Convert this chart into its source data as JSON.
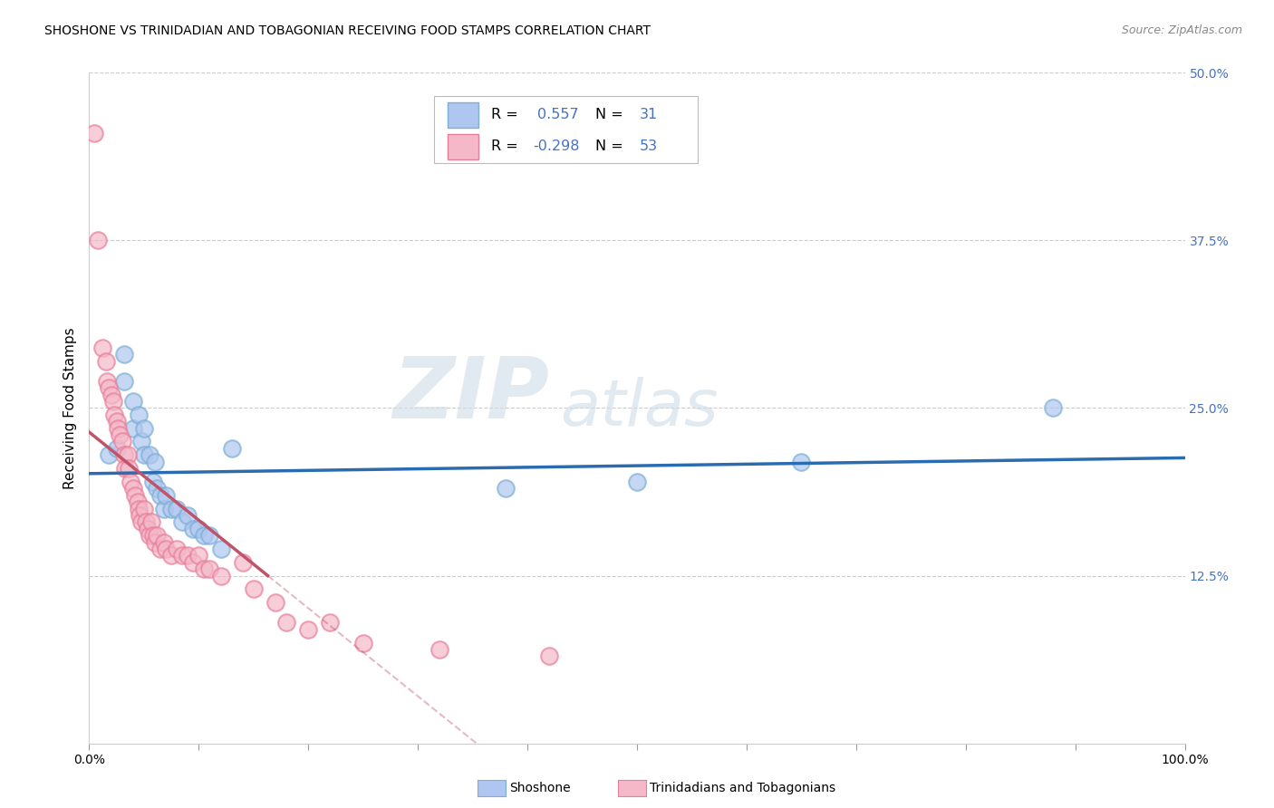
{
  "title": "SHOSHONE VS TRINIDADIAN AND TOBAGONIAN RECEIVING FOOD STAMPS CORRELATION CHART",
  "source": "Source: ZipAtlas.com",
  "ylabel": "Receiving Food Stamps",
  "xlim": [
    0.0,
    1.0
  ],
  "ylim": [
    0.0,
    0.5
  ],
  "yticks_right": [
    0.125,
    0.25,
    0.375,
    0.5
  ],
  "ytick_right_labels": [
    "12.5%",
    "25.0%",
    "37.5%",
    "50.0%"
  ],
  "xtick_positions": [
    0.0,
    0.1,
    0.2,
    0.3,
    0.4,
    0.5,
    0.6,
    0.7,
    0.8,
    0.9,
    1.0
  ],
  "shoshone_color": "#7bafd4",
  "shoshone_face_color": "#aec6f0",
  "trinidadian_color": "#e87e9a",
  "trinidadian_face_color": "#f4b8c8",
  "shoshone_line_color": "#2b6cb0",
  "trinidadian_line_color": "#c0546a",
  "shoshone_R": "0.557",
  "shoshone_N": "31",
  "trinidadian_R": "-0.298",
  "trinidadian_N": "53",
  "watermark_zip": "ZIP",
  "watermark_atlas": "atlas",
  "background_color": "#ffffff",
  "grid_color": "#cccccc",
  "right_tick_color": "#4472c4",
  "legend_R_color": "#4472c4",
  "shoshone_scatter": [
    [
      0.018,
      0.215
    ],
    [
      0.025,
      0.22
    ],
    [
      0.032,
      0.29
    ],
    [
      0.032,
      0.27
    ],
    [
      0.04,
      0.255
    ],
    [
      0.04,
      0.235
    ],
    [
      0.045,
      0.245
    ],
    [
      0.048,
      0.225
    ],
    [
      0.05,
      0.235
    ],
    [
      0.05,
      0.215
    ],
    [
      0.055,
      0.215
    ],
    [
      0.058,
      0.195
    ],
    [
      0.06,
      0.21
    ],
    [
      0.062,
      0.19
    ],
    [
      0.065,
      0.185
    ],
    [
      0.068,
      0.175
    ],
    [
      0.07,
      0.185
    ],
    [
      0.075,
      0.175
    ],
    [
      0.08,
      0.175
    ],
    [
      0.085,
      0.165
    ],
    [
      0.09,
      0.17
    ],
    [
      0.095,
      0.16
    ],
    [
      0.1,
      0.16
    ],
    [
      0.105,
      0.155
    ],
    [
      0.11,
      0.155
    ],
    [
      0.12,
      0.145
    ],
    [
      0.13,
      0.22
    ],
    [
      0.38,
      0.19
    ],
    [
      0.5,
      0.195
    ],
    [
      0.65,
      0.21
    ],
    [
      0.88,
      0.25
    ]
  ],
  "trinidadian_scatter": [
    [
      0.005,
      0.455
    ],
    [
      0.008,
      0.375
    ],
    [
      0.012,
      0.295
    ],
    [
      0.015,
      0.285
    ],
    [
      0.016,
      0.27
    ],
    [
      0.018,
      0.265
    ],
    [
      0.02,
      0.26
    ],
    [
      0.022,
      0.255
    ],
    [
      0.023,
      0.245
    ],
    [
      0.025,
      0.24
    ],
    [
      0.026,
      0.235
    ],
    [
      0.028,
      0.23
    ],
    [
      0.03,
      0.225
    ],
    [
      0.032,
      0.215
    ],
    [
      0.033,
      0.205
    ],
    [
      0.035,
      0.215
    ],
    [
      0.036,
      0.205
    ],
    [
      0.038,
      0.195
    ],
    [
      0.04,
      0.19
    ],
    [
      0.042,
      0.185
    ],
    [
      0.044,
      0.18
    ],
    [
      0.045,
      0.175
    ],
    [
      0.046,
      0.17
    ],
    [
      0.048,
      0.165
    ],
    [
      0.05,
      0.175
    ],
    [
      0.052,
      0.165
    ],
    [
      0.053,
      0.16
    ],
    [
      0.055,
      0.155
    ],
    [
      0.057,
      0.165
    ],
    [
      0.058,
      0.155
    ],
    [
      0.06,
      0.15
    ],
    [
      0.062,
      0.155
    ],
    [
      0.065,
      0.145
    ],
    [
      0.068,
      0.15
    ],
    [
      0.07,
      0.145
    ],
    [
      0.075,
      0.14
    ],
    [
      0.08,
      0.145
    ],
    [
      0.085,
      0.14
    ],
    [
      0.09,
      0.14
    ],
    [
      0.095,
      0.135
    ],
    [
      0.1,
      0.14
    ],
    [
      0.105,
      0.13
    ],
    [
      0.11,
      0.13
    ],
    [
      0.12,
      0.125
    ],
    [
      0.14,
      0.135
    ],
    [
      0.15,
      0.115
    ],
    [
      0.17,
      0.105
    ],
    [
      0.18,
      0.09
    ],
    [
      0.2,
      0.085
    ],
    [
      0.22,
      0.09
    ],
    [
      0.25,
      0.075
    ],
    [
      0.32,
      0.07
    ],
    [
      0.42,
      0.065
    ]
  ]
}
